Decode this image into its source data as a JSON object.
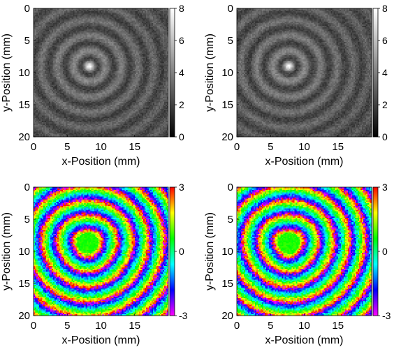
{
  "chart_data": [
    {
      "type": "heatmap",
      "quantity": "amplitude",
      "xlabel": "x-Position (mm)",
      "ylabel": "y-Position (mm)",
      "xlim": [
        0,
        20
      ],
      "ylim": [
        20,
        0
      ],
      "xticks": [
        0,
        5,
        10,
        15
      ],
      "yticks": [
        0,
        5,
        10,
        15,
        20
      ],
      "colormap": "gray",
      "colorbar": {
        "range": [
          0,
          8
        ],
        "ticks": [
          0,
          2,
          4,
          6,
          8
        ]
      },
      "pattern": {
        "center_x": 8.3,
        "center_y": 9.0,
        "ring_spacing_mm": 2.4,
        "noise_level": 0.4
      }
    },
    {
      "type": "heatmap",
      "quantity": "amplitude",
      "xlabel": "x-Position (mm)",
      "ylabel": "y-Position (mm)",
      "xlim": [
        0,
        20
      ],
      "ylim": [
        20,
        0
      ],
      "xticks": [
        0,
        5,
        10,
        15
      ],
      "yticks": [
        0,
        5,
        10,
        15,
        20
      ],
      "colormap": "gray",
      "colorbar": {
        "range": [
          0,
          8
        ],
        "ticks": [
          0,
          2,
          4,
          6,
          8
        ]
      },
      "pattern": {
        "center_x": 7.7,
        "center_y": 9.0,
        "ring_spacing_mm": 2.4,
        "noise_level": 0.4
      }
    },
    {
      "type": "heatmap",
      "quantity": "phase",
      "xlabel": "x-Position (mm)",
      "ylabel": "y-Position (mm)",
      "xlim": [
        0,
        20
      ],
      "ylim": [
        20,
        0
      ],
      "xticks": [
        0,
        5,
        10,
        15
      ],
      "yticks": [
        0,
        5,
        10,
        15,
        20
      ],
      "colormap": "hsv",
      "colorbar": {
        "range": [
          -3,
          3
        ],
        "ticks": [
          3,
          0,
          -3
        ]
      },
      "pattern": {
        "center_x": 8.0,
        "center_y": 8.7,
        "ring_spacing_mm": 2.3,
        "noise_level": 0.6
      }
    },
    {
      "type": "heatmap",
      "quantity": "phase",
      "xlabel": "x-Position (mm)",
      "ylabel": "y-Position (mm)",
      "xlim": [
        0,
        20
      ],
      "ylim": [
        20,
        0
      ],
      "xticks": [
        0,
        5,
        10,
        15
      ],
      "yticks": [
        0,
        5,
        10,
        15,
        20
      ],
      "colormap": "hsv",
      "colorbar": {
        "range": [
          -3,
          3
        ],
        "ticks": [
          3,
          0,
          -3
        ]
      },
      "pattern": {
        "center_x": 7.7,
        "center_y": 8.7,
        "ring_spacing_mm": 2.3,
        "noise_level": 0.6
      }
    }
  ]
}
